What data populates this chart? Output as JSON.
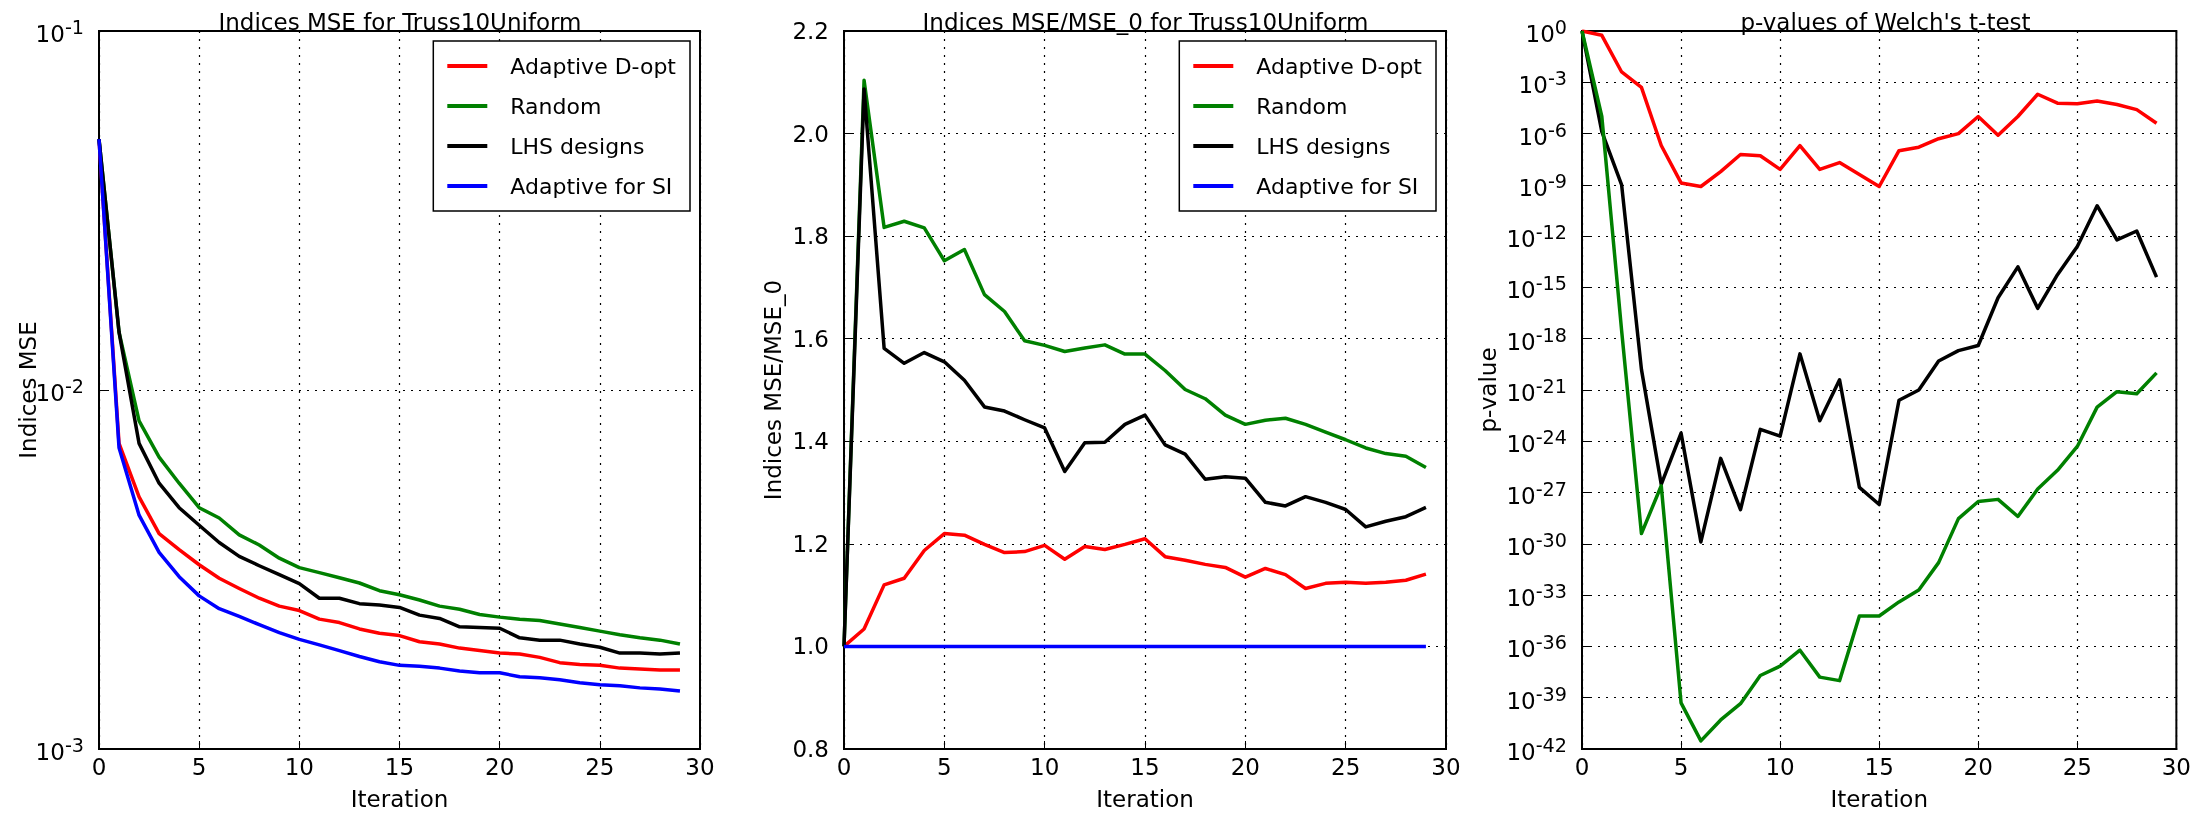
{
  "chart_data": [
    {
      "type": "line",
      "title": "Indices MSE for Truss10Uniform",
      "xlabel": "Iteration",
      "ylabel": "Indices MSE",
      "log": "y",
      "grid": true,
      "legend": "top right",
      "xlim": [
        0,
        30
      ],
      "xticks": [
        0,
        5,
        10,
        15,
        20,
        25,
        30
      ],
      "ylim": [
        0.001,
        0.1
      ],
      "yticks": [
        {
          "value": 0.001,
          "label": "10$^{-3}$"
        },
        {
          "value": 0.01,
          "label": "10$^{-2}$"
        },
        {
          "value": 0.1,
          "label": "10$^{-1}$"
        }
      ],
      "x": [
        0,
        1,
        2,
        3,
        4,
        5,
        6,
        7,
        8,
        9,
        10,
        11,
        12,
        13,
        14,
        15,
        16,
        17,
        18,
        19,
        20,
        21,
        22,
        23,
        24,
        25,
        26,
        27,
        28,
        29
      ],
      "series": [
        {
          "name": "Adaptive D-opt",
          "color": "#ff0000",
          "values": [
            0.05,
            0.0071,
            0.00504,
            0.00398,
            0.00359,
            0.00326,
            0.00299,
            0.0028,
            0.00263,
            0.0025,
            0.00243,
            0.0023,
            0.00225,
            0.00216,
            0.0021,
            0.00207,
            0.00199,
            0.00196,
            0.00191,
            0.00188,
            0.00185,
            0.00184,
            0.0018,
            0.00174,
            0.00172,
            0.00171,
            0.00168,
            0.00167,
            0.00166,
            0.00166
          ]
        },
        {
          "name": "Random",
          "color": "#008000",
          "values": [
            0.05,
            0.0145,
            0.0082,
            0.0065,
            0.0055,
            0.0047,
            0.0044,
            0.00395,
            0.0037,
            0.0034,
            0.0032,
            0.0031,
            0.003,
            0.0029,
            0.00276,
            0.00269,
            0.0026,
            0.0025,
            0.00245,
            0.00237,
            0.00233,
            0.0023,
            0.00228,
            0.00223,
            0.00218,
            0.00213,
            0.00208,
            0.00204,
            0.00201,
            0.00196
          ]
        },
        {
          "name": "LHS designs",
          "color": "#000000",
          "values": [
            0.05,
            0.0145,
            0.0071,
            0.0055,
            0.0047,
            0.0042,
            0.00376,
            0.00344,
            0.00324,
            0.00306,
            0.00289,
            0.00263,
            0.00263,
            0.00254,
            0.00252,
            0.00248,
            0.00236,
            0.00231,
            0.00219,
            0.00218,
            0.00217,
            0.00204,
            0.00201,
            0.00201,
            0.00196,
            0.00192,
            0.00185,
            0.00185,
            0.00184,
            0.00185
          ]
        },
        {
          "name": "Adaptive for SI",
          "color": "#0000ff",
          "values": [
            0.05,
            0.0069,
            0.00448,
            0.00353,
            0.00302,
            0.00267,
            0.00246,
            0.00234,
            0.00222,
            0.00211,
            0.00202,
            0.00195,
            0.00188,
            0.00181,
            0.00175,
            0.00171,
            0.0017,
            0.00168,
            0.00165,
            0.00163,
            0.00163,
            0.00159,
            0.00158,
            0.00156,
            0.00153,
            0.00151,
            0.0015,
            0.00148,
            0.00147,
            0.00145
          ]
        }
      ]
    },
    {
      "type": "line",
      "title": "Indices MSE/MSE_0 for Truss10Uniform",
      "xlabel": "Iteration",
      "ylabel": "Indices MSE/MSE_0",
      "grid": true,
      "legend": "top right",
      "xlim": [
        0,
        30
      ],
      "xticks": [
        0,
        5,
        10,
        15,
        20,
        25,
        30
      ],
      "ylim": [
        0.8,
        2.2
      ],
      "yticks": [
        {
          "value": 0.8,
          "label": "0.8"
        },
        {
          "value": 1.0,
          "label": "1.0"
        },
        {
          "value": 1.2,
          "label": "1.2"
        },
        {
          "value": 1.4,
          "label": "1.4"
        },
        {
          "value": 1.6,
          "label": "1.6"
        },
        {
          "value": 1.8,
          "label": "1.8"
        },
        {
          "value": 2.0,
          "label": "2.0"
        },
        {
          "value": 2.2,
          "label": "2.2"
        }
      ],
      "x": [
        0,
        1,
        2,
        3,
        4,
        5,
        6,
        7,
        8,
        9,
        10,
        11,
        12,
        13,
        14,
        15,
        16,
        17,
        18,
        19,
        20,
        21,
        22,
        23,
        24,
        25,
        26,
        27,
        28,
        29
      ],
      "series": [
        {
          "name": "Adaptive D-opt",
          "color": "#ff0000",
          "values": [
            1.0,
            1.034,
            1.12,
            1.133,
            1.187,
            1.22,
            1.217,
            1.199,
            1.183,
            1.185,
            1.197,
            1.17,
            1.195,
            1.189,
            1.199,
            1.21,
            1.175,
            1.168,
            1.16,
            1.154,
            1.135,
            1.152,
            1.14,
            1.113,
            1.123,
            1.125,
            1.123,
            1.125,
            1.129,
            1.141
          ]
        },
        {
          "name": "Random",
          "color": "#008000",
          "values": [
            1.0,
            2.104,
            1.817,
            1.829,
            1.816,
            1.752,
            1.774,
            1.686,
            1.653,
            1.596,
            1.587,
            1.575,
            1.582,
            1.588,
            1.57,
            1.57,
            1.538,
            1.501,
            1.483,
            1.451,
            1.433,
            1.441,
            1.445,
            1.433,
            1.418,
            1.403,
            1.387,
            1.376,
            1.371,
            1.349
          ]
        },
        {
          "name": "LHS designs",
          "color": "#000000",
          "values": [
            1.0,
            2.087,
            1.581,
            1.552,
            1.573,
            1.555,
            1.519,
            1.467,
            1.459,
            1.442,
            1.426,
            1.341,
            1.397,
            1.398,
            1.433,
            1.451,
            1.393,
            1.375,
            1.326,
            1.331,
            1.328,
            1.281,
            1.274,
            1.292,
            1.281,
            1.267,
            1.233,
            1.244,
            1.253,
            1.271
          ]
        },
        {
          "name": "Adaptive for SI",
          "color": "#0000ff",
          "values": [
            1.0,
            1.0,
            1.0,
            1.0,
            1.0,
            1.0,
            1.0,
            1.0,
            1.0,
            1.0,
            1.0,
            1.0,
            1.0,
            1.0,
            1.0,
            1.0,
            1.0,
            1.0,
            1.0,
            1.0,
            1.0,
            1.0,
            1.0,
            1.0,
            1.0,
            1.0,
            1.0,
            1.0,
            1.0,
            1.0
          ]
        }
      ]
    },
    {
      "type": "line",
      "title": "p-values of Welch's t-test",
      "xlabel": "Iteration",
      "ylabel": "p-value",
      "log": "y",
      "grid": true,
      "xlim": [
        0,
        30
      ],
      "xticks": [
        0,
        5,
        10,
        15,
        20,
        25,
        30
      ],
      "ylim": [
        1e-42,
        1
      ],
      "yticks": [
        {
          "value": 1,
          "label": "10$^{0}$"
        },
        {
          "value": 0.001,
          "label": "10$^{-3}$"
        },
        {
          "value": 1e-06,
          "label": "10$^{-6}$"
        },
        {
          "value": 1e-09,
          "label": "10$^{-9}$"
        },
        {
          "value": 1e-12,
          "label": "10$^{-12}$"
        },
        {
          "value": 1e-15,
          "label": "10$^{-15}$"
        },
        {
          "value": 1e-18,
          "label": "10$^{-18}$"
        },
        {
          "value": 1e-21,
          "label": "10$^{-21}$"
        },
        {
          "value": 1e-24,
          "label": "10$^{-24}$"
        },
        {
          "value": 1e-27,
          "label": "10$^{-27}$"
        },
        {
          "value": 1e-30,
          "label": "10$^{-30}$"
        },
        {
          "value": 1e-33,
          "label": "10$^{-33}$"
        },
        {
          "value": 1e-36,
          "label": "10$^{-36}$"
        },
        {
          "value": 1e-39,
          "label": "10$^{-39}$"
        },
        {
          "value": 1e-42,
          "label": "10$^{-42}$"
        }
      ],
      "x": [
        0,
        1,
        2,
        3,
        4,
        5,
        6,
        7,
        8,
        9,
        10,
        11,
        12,
        13,
        14,
        15,
        16,
        17,
        18,
        19,
        20,
        21,
        22,
        23,
        24,
        25,
        26,
        27,
        28,
        29
      ],
      "series": [
        {
          "color": "#ff0000",
          "values": [
            1,
            0.56,
            0.004,
            0.0005,
            2e-07,
            1.3e-09,
            8e-10,
            6e-09,
            6e-08,
            5e-08,
            8e-09,
            2e-07,
            8e-09,
            2e-08,
            4e-09,
            8e-10,
            1e-07,
            1.6e-07,
            5e-07,
            1e-06,
            1e-05,
            8e-07,
            1e-05,
            0.0002,
            6e-05,
            5.6e-05,
            8e-05,
            5e-05,
            2.5e-05,
            4e-06
          ]
        },
        {
          "color": "#000000",
          "values": [
            1,
            1.3e-06,
            1e-09,
            1.6e-20,
            3e-27,
            3e-24,
            1.3e-30,
            1e-25,
            1e-28,
            5e-24,
            2e-24,
            1.3e-19,
            1.6e-23,
            4e-21,
            2e-27,
            2e-28,
            2.5e-22,
            1e-21,
            5e-20,
            2e-19,
            4e-19,
            2.5e-16,
            1.6e-14,
            6e-17,
            5.6e-15,
            2.5e-13,
            6e-11,
            6e-13,
            2e-12,
            4e-15
          ]
        },
        {
          "color": "#008000",
          "values": [
            1,
            1e-05,
            3e-18,
            4e-30,
            2.5e-27,
            5e-40,
            3e-42,
            5e-41,
            4.5e-40,
            2e-38,
            7e-38,
            6e-37,
            1.6e-38,
            1e-38,
            6e-35,
            6e-35,
            4e-34,
            2e-33,
            8e-32,
            3e-29,
            3e-28,
            4e-28,
            4e-29,
            1.6e-27,
            2e-26,
            5e-25,
            1e-22,
            8e-22,
            6e-22,
            1e-20
          ]
        }
      ]
    }
  ]
}
